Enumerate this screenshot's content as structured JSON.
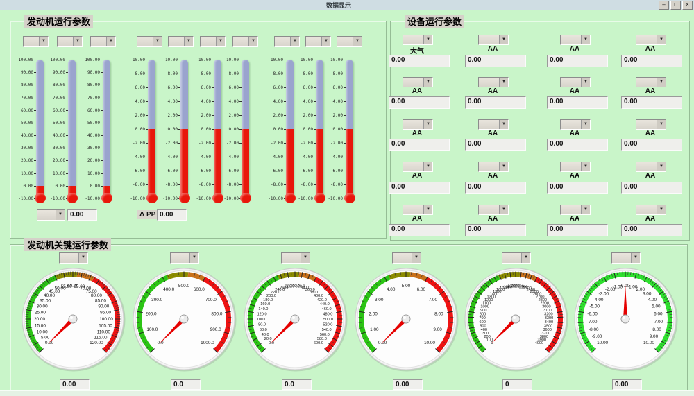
{
  "window": {
    "title": "数据显示",
    "minimize_label": "–",
    "maximize_label": "□",
    "close_label": "×"
  },
  "colors": {
    "background_green": "#c9f5c9",
    "titlebar": "#cfdde3",
    "panel_border": "#96bd96",
    "tube_blue": "#9aa4ce",
    "tube_red": "#e8170b",
    "needle_red": "#e60000",
    "bezel_shadow": "#b5d6b5",
    "bezel": "#f4f4f4",
    "face": "#fdfdfd"
  },
  "engine_panel": {
    "title": "发动机运行参数",
    "scales": {
      "wide": {
        "labels": [
          "100.00",
          "90.00",
          "80.00",
          "70.00",
          "60.00",
          "50.00",
          "40.00",
          "30.00",
          "20.00",
          "10.00",
          "0.00",
          "-10.00"
        ],
        "red_fraction": 0.0909
      },
      "narrow": {
        "labels": [
          "10.00",
          "8.00",
          "6.00",
          "4.00",
          "2.00",
          "0.00",
          "-2.00",
          "-4.00",
          "-6.00",
          "-8.00",
          "-10.00"
        ],
        "red_fraction": 0.5
      }
    },
    "thermometers": [
      "wide",
      "wide",
      "wide",
      "narrow",
      "narrow",
      "narrow",
      "narrow",
      "narrow",
      "narrow",
      "narrow"
    ],
    "footer": {
      "reading": "0.00",
      "delta_label": "Δ PP",
      "delta_value": "0.00"
    }
  },
  "device_panel": {
    "title": "设备运行参数",
    "rows": [
      {
        "labels": [
          "大气",
          "AA",
          "AA",
          "AA"
        ],
        "values": [
          "0.00",
          "0.00",
          "0.00",
          "0.00"
        ]
      },
      {
        "labels": [
          "AA",
          "AA",
          "AA",
          "AA"
        ],
        "values": [
          "0.00",
          "0.00",
          "0.00",
          "0.00"
        ]
      },
      {
        "labels": [
          "AA",
          "AA",
          "AA",
          "AA"
        ],
        "values": [
          "0.00",
          "0.00",
          "0.00",
          "0.00"
        ]
      },
      {
        "labels": [
          "AA",
          "AA",
          "AA",
          "AA"
        ],
        "values": [
          "0.00",
          "0.00",
          "0.00",
          "0.00"
        ]
      },
      {
        "labels": [
          "AA",
          "AA",
          "AA",
          "AA"
        ],
        "values": [
          "0.00",
          "0.00",
          "0.00",
          "0.00"
        ]
      }
    ]
  },
  "key_panel": {
    "title": "发动机关键运行参数",
    "bands": {
      "multi": [
        {
          "from": 0,
          "to": 0.42,
          "color": "#2bc414"
        },
        {
          "from": 0.42,
          "to": 0.52,
          "color": "#8b8b00"
        },
        {
          "from": 0.52,
          "to": 0.6,
          "color": "#c8701a"
        },
        {
          "from": 0.6,
          "to": 1,
          "color": "#ee1212"
        }
      ],
      "green": [
        {
          "from": 0,
          "to": 1,
          "color": "#2ee02e"
        }
      ]
    },
    "gauges": [
      {
        "name": "gauge-1",
        "min": 0,
        "max": 120,
        "value": 0,
        "display": "0.00",
        "band": "multi",
        "tick_labels": [
          "0.00",
          "5.00",
          "10.00",
          "15.00",
          "20.00",
          "25.00",
          "30.00",
          "35.00",
          "40.00",
          "45.00",
          "50.00",
          "55.00",
          "60.00",
          "65.00",
          "70.00",
          "75.00",
          "80.00",
          "85.00",
          "90.00",
          "95.00",
          "100.00",
          "105.00",
          "110.00",
          "115.00",
          "120.00"
        ]
      },
      {
        "name": "gauge-2",
        "min": 0,
        "max": 1000,
        "value": 0,
        "display": "0.0",
        "band": "multi",
        "tick_labels": [
          "0.0",
          "100.0",
          "200.0",
          "300.0",
          "400.0",
          "500.0",
          "600.0",
          "700.0",
          "800.0",
          "900.0",
          "1000.0"
        ]
      },
      {
        "name": "gauge-3",
        "min": 0,
        "max": 600,
        "value": 0,
        "display": "0.0",
        "band": "multi",
        "tick_labels": [
          "0.0",
          "20.0",
          "40.0",
          "60.0",
          "80.0",
          "100.0",
          "120.0",
          "140.0",
          "160.0",
          "180.0",
          "200.0",
          "220.0",
          "240.0",
          "260.0",
          "280.0",
          "300.0",
          "320.0",
          "340.0",
          "360.0",
          "380.0",
          "400.0",
          "420.0",
          "440.0",
          "460.0",
          "480.0",
          "500.0",
          "520.0",
          "540.0",
          "560.0",
          "580.0",
          "600.0"
        ]
      },
      {
        "name": "gauge-4",
        "min": 0,
        "max": 10,
        "value": 0,
        "display": "0.00",
        "band": "multi",
        "tick_labels": [
          "0.00",
          "1.00",
          "2.00",
          "3.00",
          "4.00",
          "5.00",
          "6.00",
          "7.00",
          "8.00",
          "9.00",
          "10.00"
        ]
      },
      {
        "name": "gauge-5",
        "min": 0,
        "max": 4000,
        "value": 0,
        "display": "0",
        "band": "multi",
        "tick_labels": [
          "0",
          "100",
          "200",
          "300",
          "400",
          "500",
          "600",
          "700",
          "800",
          "900",
          "1000",
          "1100",
          "1200",
          "1300",
          "1400",
          "1500",
          "1600",
          "1700",
          "1800",
          "1900",
          "2000",
          "2100",
          "2200",
          "2300",
          "2400",
          "2500",
          "2600",
          "2700",
          "2800",
          "2900",
          "3000",
          "3100",
          "3200",
          "3300",
          "3400",
          "3500",
          "3600",
          "3700",
          "3800",
          "3900",
          "4000"
        ]
      },
      {
        "name": "gauge-6",
        "min": -10,
        "max": 10,
        "value": 0,
        "display": "0.00",
        "band": "green",
        "tick_labels": [
          "-10.00",
          "-9.00",
          "-8.00",
          "-7.00",
          "-6.00",
          "-5.00",
          "-4.00",
          "-3.00",
          "-2.00",
          "-1.00",
          "0.00",
          "1.00",
          "2.00",
          "3.00",
          "4.00",
          "5.00",
          "6.00",
          "7.00",
          "8.00",
          "9.00",
          "10.00"
        ]
      }
    ]
  }
}
